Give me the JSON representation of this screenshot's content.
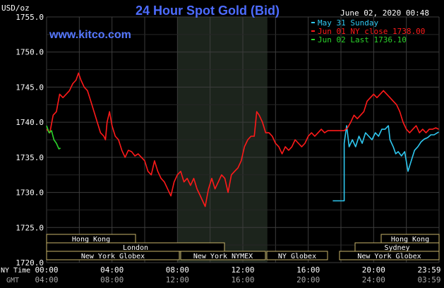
{
  "header": {
    "title": "24 Hour Spot Gold (Bid)",
    "units": "USD/oz",
    "datetime": "June 02, 2020 00:48",
    "site": "www.kitco.com"
  },
  "legend": [
    {
      "label": "May 31 Sunday",
      "color": "#2fc8f0"
    },
    {
      "label": "Jun 01 NY close 1738.00",
      "color": "#ff1a1a"
    },
    {
      "label": "Jun 02 Last 1736.10",
      "color": "#2bd42b"
    }
  ],
  "colors": {
    "background": "#000000",
    "grid": "#3d3d3d",
    "highlight": "#1c241c",
    "axis_text": "#ffffff",
    "title": "#4d6cff",
    "site": "#5577ff",
    "session_border": "#c8b46a",
    "session_text": "#ffffff"
  },
  "axes": {
    "y_ticks": [
      "1755.0",
      "1750.0",
      "1745.0",
      "1740.0",
      "1735.0",
      "1730.0",
      "1725.0",
      "1720.0"
    ],
    "x_row_label": "NY Time",
    "x_ticks": [
      "00:00",
      "04:00",
      "08:00",
      "12:00",
      "16:00",
      "20:00",
      "23:59"
    ],
    "gmt_row_label": "GMT",
    "gmt_ticks": [
      "04:00",
      "08:00",
      "12:00",
      "16:00",
      "20:00",
      "24:00",
      "03:59"
    ]
  },
  "sessions": [
    {
      "label": "Hong Kong"
    },
    {
      "label": "London"
    },
    {
      "label": "New York Globex"
    },
    {
      "label": "New York NYMEX"
    },
    {
      "label": "NY Globex"
    },
    {
      "label": "Hong Kong"
    },
    {
      "label": "Sydney"
    },
    {
      "label": "New York Globex"
    }
  ],
  "chart_data": {
    "type": "line",
    "x_unit": "hours (NY time)",
    "xlim": [
      0,
      24
    ],
    "ylim": [
      1720,
      1755
    ],
    "ylabel": "USD/oz",
    "shaded_hours": [
      8,
      13.5
    ],
    "series": [
      {
        "name": "May 31 Sunday",
        "color": "#2fc8f0",
        "segments": [
          [
            [
              17.5,
              1728.8
            ],
            [
              18.2,
              1728.8
            ],
            [
              18.2,
              1737
            ],
            [
              18.35,
              1739.5
            ],
            [
              18.5,
              1736.5
            ],
            [
              18.7,
              1737.5
            ],
            [
              18.9,
              1736.5
            ],
            [
              19.1,
              1738
            ],
            [
              19.3,
              1737
            ],
            [
              19.5,
              1738.5
            ],
            [
              19.7,
              1738
            ],
            [
              19.9,
              1737.5
            ],
            [
              20.1,
              1738.5
            ],
            [
              20.3,
              1738
            ],
            [
              20.5,
              1739
            ],
            [
              20.7,
              1739
            ],
            [
              20.9,
              1739.5
            ],
            [
              21.0,
              1737.5
            ],
            [
              21.2,
              1736.5
            ],
            [
              21.35,
              1735.5
            ],
            [
              21.5,
              1735.8
            ],
            [
              21.7,
              1735.2
            ],
            [
              21.9,
              1735.8
            ],
            [
              22.1,
              1733
            ],
            [
              22.3,
              1734.5
            ],
            [
              22.5,
              1736
            ],
            [
              22.7,
              1736.5
            ],
            [
              22.9,
              1737.2
            ],
            [
              23.1,
              1737.6
            ],
            [
              23.3,
              1737.8
            ],
            [
              23.5,
              1738.2
            ],
            [
              23.7,
              1738.2
            ],
            [
              23.9,
              1738.5
            ],
            [
              23.98,
              1738.6
            ]
          ]
        ]
      },
      {
        "name": "Jun 01 NY close 1738.00",
        "color": "#ff1a1a",
        "segments": [
          [
            [
              0,
              1739
            ],
            [
              0.2,
              1738.5
            ],
            [
              0.4,
              1741
            ],
            [
              0.6,
              1741.5
            ],
            [
              0.8,
              1744
            ],
            [
              1.0,
              1743.5
            ],
            [
              1.2,
              1744
            ],
            [
              1.4,
              1744.5
            ],
            [
              1.6,
              1745.5
            ],
            [
              1.8,
              1746
            ],
            [
              1.95,
              1747
            ],
            [
              2.1,
              1746
            ],
            [
              2.3,
              1745
            ],
            [
              2.5,
              1744.5
            ],
            [
              2.7,
              1743
            ],
            [
              2.9,
              1741.5
            ],
            [
              3.1,
              1740
            ],
            [
              3.3,
              1738.5
            ],
            [
              3.5,
              1738
            ],
            [
              3.6,
              1737.5
            ],
            [
              3.7,
              1740
            ],
            [
              3.85,
              1741.5
            ],
            [
              4.0,
              1739.5
            ],
            [
              4.2,
              1738
            ],
            [
              4.4,
              1737.5
            ],
            [
              4.6,
              1736
            ],
            [
              4.8,
              1735
            ],
            [
              5.0,
              1736
            ],
            [
              5.2,
              1735.8
            ],
            [
              5.4,
              1735.2
            ],
            [
              5.6,
              1735.5
            ],
            [
              5.8,
              1735
            ],
            [
              6.0,
              1734.5
            ],
            [
              6.2,
              1733
            ],
            [
              6.4,
              1732.5
            ],
            [
              6.6,
              1734.5
            ],
            [
              6.8,
              1733
            ],
            [
              7.0,
              1732
            ],
            [
              7.2,
              1731.5
            ],
            [
              7.4,
              1730.5
            ],
            [
              7.6,
              1729.5
            ],
            [
              7.8,
              1731.5
            ],
            [
              8.0,
              1732.5
            ],
            [
              8.2,
              1733
            ],
            [
              8.4,
              1731.5
            ],
            [
              8.6,
              1732
            ],
            [
              8.8,
              1731
            ],
            [
              9.0,
              1732
            ],
            [
              9.2,
              1730.5
            ],
            [
              9.4,
              1729.5
            ],
            [
              9.6,
              1728.5
            ],
            [
              9.7,
              1728
            ],
            [
              9.9,
              1730.5
            ],
            [
              10.1,
              1732
            ],
            [
              10.3,
              1730.5
            ],
            [
              10.5,
              1731.5
            ],
            [
              10.7,
              1732.5
            ],
            [
              10.9,
              1732
            ],
            [
              11.1,
              1730
            ],
            [
              11.3,
              1732.5
            ],
            [
              11.5,
              1733
            ],
            [
              11.7,
              1733.5
            ],
            [
              11.9,
              1734.5
            ],
            [
              12.1,
              1736.5
            ],
            [
              12.3,
              1737.5
            ],
            [
              12.5,
              1738
            ],
            [
              12.7,
              1738
            ],
            [
              12.85,
              1741.5
            ],
            [
              13.0,
              1741
            ],
            [
              13.2,
              1740
            ],
            [
              13.4,
              1738.5
            ],
            [
              13.6,
              1738.5
            ],
            [
              13.8,
              1738
            ],
            [
              14.0,
              1737
            ],
            [
              14.2,
              1736.5
            ],
            [
              14.4,
              1735.5
            ],
            [
              14.6,
              1736.5
            ],
            [
              14.8,
              1736
            ],
            [
              15.0,
              1736.5
            ],
            [
              15.2,
              1737.5
            ],
            [
              15.4,
              1737
            ],
            [
              15.6,
              1736.5
            ],
            [
              15.8,
              1737
            ],
            [
              16.0,
              1738
            ],
            [
              16.2,
              1738.5
            ],
            [
              16.4,
              1738
            ],
            [
              16.6,
              1738.5
            ],
            [
              16.8,
              1739
            ],
            [
              17.0,
              1738.5
            ],
            [
              17.2,
              1738.8
            ],
            [
              17.4,
              1738.8
            ],
            [
              17.6,
              1738.8
            ],
            [
              17.8,
              1738.8
            ],
            [
              18.0,
              1738.8
            ],
            [
              18.2,
              1738.8
            ],
            [
              18.4,
              1739.2
            ],
            [
              18.6,
              1740
            ],
            [
              18.8,
              1741
            ],
            [
              19.0,
              1740.5
            ],
            [
              19.2,
              1741
            ],
            [
              19.4,
              1741.5
            ],
            [
              19.6,
              1743
            ],
            [
              19.8,
              1743.5
            ],
            [
              20.0,
              1744
            ],
            [
              20.2,
              1743.5
            ],
            [
              20.4,
              1744
            ],
            [
              20.6,
              1744.5
            ],
            [
              20.8,
              1744
            ],
            [
              21.0,
              1743.5
            ],
            [
              21.2,
              1743
            ],
            [
              21.4,
              1742.5
            ],
            [
              21.6,
              1741.5
            ],
            [
              21.8,
              1740
            ],
            [
              22.0,
              1739
            ],
            [
              22.2,
              1738.5
            ],
            [
              22.4,
              1739
            ],
            [
              22.6,
              1739.5
            ],
            [
              22.8,
              1738.5
            ],
            [
              23.0,
              1739
            ],
            [
              23.2,
              1738.5
            ],
            [
              23.4,
              1739
            ],
            [
              23.6,
              1739
            ],
            [
              23.8,
              1739.2
            ],
            [
              23.98,
              1739
            ]
          ]
        ]
      },
      {
        "name": "Jun 02 Last 1736.10",
        "color": "#2bd42b",
        "segments": [
          [
            [
              0,
              1739.5
            ],
            [
              0.15,
              1738.5
            ],
            [
              0.3,
              1738.8
            ],
            [
              0.45,
              1737.5
            ],
            [
              0.6,
              1737
            ],
            [
              0.75,
              1736.2
            ],
            [
              0.85,
              1736.3
            ]
          ]
        ]
      }
    ]
  }
}
